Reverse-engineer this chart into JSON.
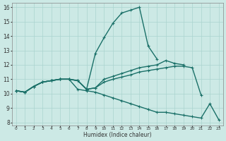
{
  "xlabel": "Humidex (Indice chaleur)",
  "ylabel": "",
  "xlim": [
    -0.5,
    23.5
  ],
  "ylim": [
    7.8,
    16.3
  ],
  "yticks": [
    8,
    9,
    10,
    11,
    12,
    13,
    14,
    15,
    16
  ],
  "xticks": [
    0,
    1,
    2,
    3,
    4,
    5,
    6,
    7,
    8,
    9,
    10,
    11,
    12,
    13,
    14,
    15,
    16,
    17,
    18,
    19,
    20,
    21,
    22,
    23
  ],
  "bg_color": "#cce9e5",
  "grid_color": "#aad4cf",
  "line_color": "#1a7068",
  "line_width": 1.0,
  "marker": "+",
  "marker_size": 3.5,
  "series": [
    [
      10.2,
      10.1,
      10.5,
      10.8,
      10.9,
      11.0,
      11.0,
      10.9,
      10.3,
      12.8,
      13.9,
      14.9,
      15.6,
      15.8,
      16.0,
      13.3,
      12.4,
      null,
      null,
      null,
      null,
      null,
      null,
      null
    ],
    [
      10.2,
      10.1,
      10.5,
      10.8,
      10.9,
      11.0,
      11.0,
      10.9,
      10.3,
      10.4,
      11.0,
      11.2,
      11.4,
      11.6,
      11.8,
      11.9,
      12.0,
      12.3,
      12.1,
      12.0,
      null,
      null,
      null,
      null
    ],
    [
      10.2,
      10.1,
      10.5,
      10.8,
      10.9,
      11.0,
      11.0,
      10.9,
      10.3,
      10.4,
      10.8,
      11.0,
      11.15,
      11.3,
      11.5,
      11.6,
      11.7,
      11.8,
      11.9,
      11.9,
      11.8,
      9.9,
      null,
      null
    ],
    [
      10.2,
      10.1,
      10.5,
      10.8,
      10.9,
      11.0,
      11.0,
      10.3,
      10.2,
      10.1,
      9.9,
      9.7,
      9.5,
      9.3,
      9.1,
      8.9,
      8.7,
      8.7,
      8.6,
      8.5,
      8.4,
      8.3,
      9.3,
      8.2
    ]
  ]
}
